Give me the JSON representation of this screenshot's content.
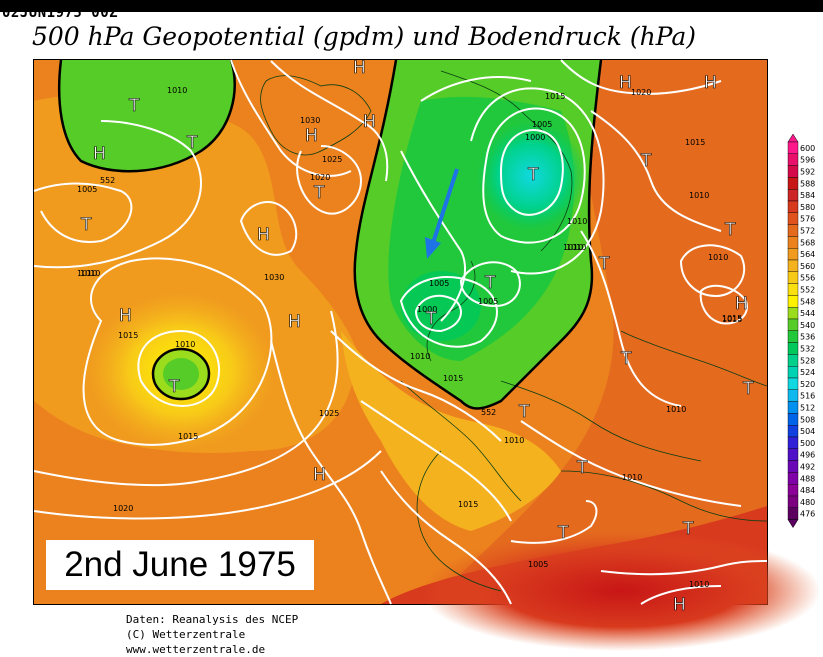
{
  "header": {
    "datecode": "02JUN1975 00Z",
    "title": "500 hPa Geopotential (gpdm) und Bodendruck (hPa)"
  },
  "banner": {
    "text": "2nd June 1975"
  },
  "footer": {
    "line1": "Daten: Reanalysis des NCEP",
    "line2": "(C) Wetterzentrale",
    "line3": "www.wetterzentrale.de"
  },
  "legend": {
    "values": [
      "600",
      "596",
      "592",
      "588",
      "584",
      "580",
      "576",
      "572",
      "568",
      "564",
      "560",
      "556",
      "552",
      "548",
      "544",
      "540",
      "536",
      "532",
      "528",
      "524",
      "520",
      "516",
      "512",
      "508",
      "504",
      "500",
      "496",
      "492",
      "488",
      "484",
      "480",
      "476"
    ],
    "colors": [
      "#ff1a8c",
      "#e8106b",
      "#d40a4a",
      "#c81616",
      "#cc2626",
      "#d83a1e",
      "#e0531c",
      "#e46a1e",
      "#ec821e",
      "#f09a1e",
      "#f4b21e",
      "#f8ca18",
      "#fae010",
      "#fff200",
      "#9bdc1c",
      "#55cc28",
      "#22c83c",
      "#00c85a",
      "#00d08a",
      "#00d2b4",
      "#10d8e0",
      "#10b8f0",
      "#0090f0",
      "#0064e8",
      "#1040e0",
      "#3020d8",
      "#5010c8",
      "#6a08b8",
      "#8000a8",
      "#8c0098",
      "#7a0080",
      "#5c0060"
    ]
  },
  "map": {
    "contour_labels": [
      "1010",
      "1010",
      "1030",
      "1025",
      "1020",
      "1005",
      "1010",
      "1015",
      "1010",
      "1015",
      "1030",
      "1025",
      "1015",
      "1020",
      "1005",
      "1000",
      "1010",
      "1010",
      "1015",
      "1005",
      "1000",
      "1005",
      "1010",
      "1015",
      "1010",
      "1010",
      "1020",
      "1015",
      "1010",
      "1015",
      "1010",
      "1015",
      "1010",
      "1005",
      "1010",
      "1010",
      "552",
      "552"
    ],
    "pressure_centers": [
      "T",
      "H",
      "T",
      "H",
      "T",
      "T",
      "H",
      "H",
      "H",
      "T",
      "H",
      "T",
      "T",
      "H",
      "H",
      "T",
      "T",
      "H",
      "T",
      "T",
      "H",
      "T",
      "T",
      "T",
      "T",
      "T",
      "H",
      "H",
      "T"
    ],
    "icons": {
      "flow_arrow": "blue-arrow-icon"
    },
    "colors": {
      "isobar": "#ffffff",
      "height_contour_552": "#000000",
      "arrow": "#1e73e6"
    }
  }
}
